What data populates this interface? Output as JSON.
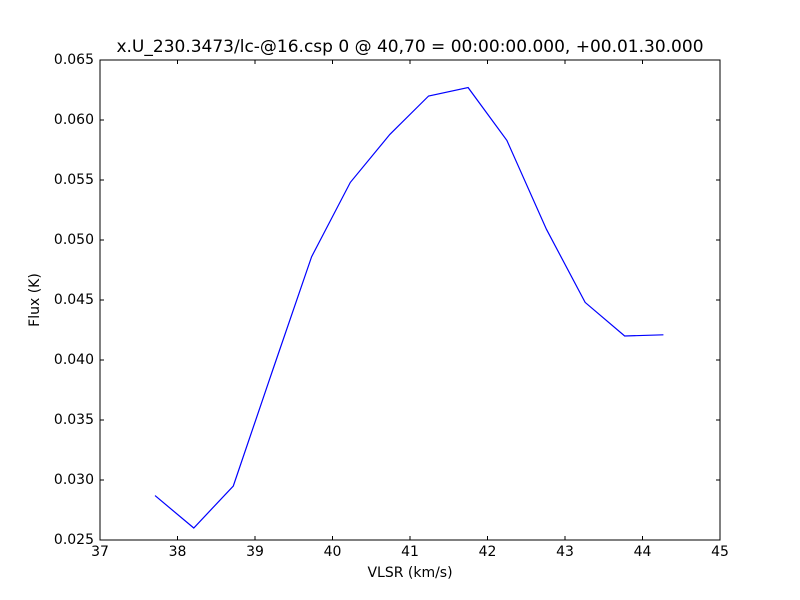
{
  "chart_data": {
    "type": "line",
    "title": "x.U_230.3473/lc-@16.csp 0 @ 40,70 = 00:00:00.000, +00.01.30.000",
    "x_label": "VLSR (km/s)",
    "y_label": "Flux (K)",
    "x": [
      37.71,
      38.21,
      38.72,
      39.22,
      39.73,
      40.23,
      40.74,
      41.24,
      41.75,
      42.25,
      42.76,
      43.26,
      43.77,
      44.27
    ],
    "series": [
      {
        "color": "#0000ff",
        "values": [
          0.0287,
          0.026,
          0.0295,
          0.039,
          0.0486,
          0.0548,
          0.0588,
          0.062,
          0.0627,
          0.0583,
          0.0509,
          0.0448,
          0.042,
          0.0421
        ]
      }
    ],
    "xlim": [
      37,
      45
    ],
    "xticks": [
      37,
      38,
      39,
      40,
      41,
      42,
      43,
      44,
      45
    ],
    "ylim": [
      0.025,
      0.065
    ],
    "yticks": [
      0.025,
      {
        "value": 0.03,
        "label": "0.030"
      },
      0.035,
      {
        "value": 0.04,
        "label": "0.040"
      },
      0.045,
      {
        "value": 0.05,
        "label": "0.050"
      },
      0.055,
      {
        "value": 0.06,
        "label": "0.060"
      },
      0.065
    ]
  }
}
